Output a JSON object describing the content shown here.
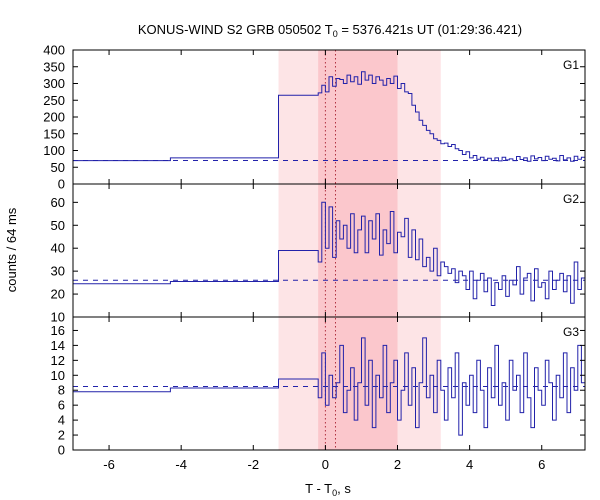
{
  "chart_data": {
    "type": "line",
    "title": "KONUS-WIND S2 GRB 050502 T",
    "title_sub": "0",
    "title_rest": " = 5376.421s UT (01:29:36.421)",
    "xlabel": "T - T",
    "xlabel_sub": "0",
    "xlabel_rest": ", s",
    "ylabel": "counts / 64 ms",
    "xlim": [
      -7,
      7.2
    ],
    "x_ticks": [
      -6,
      -4,
      -2,
      0,
      2,
      4,
      6
    ],
    "x_tick_labels": [
      "-6",
      "-4",
      "-2",
      "0",
      "2",
      "4",
      "6"
    ],
    "shaded_regions": [
      {
        "x0": -1.3,
        "x1": 3.2,
        "color": "#fde4e6"
      },
      {
        "x0": -0.2,
        "x1": 2.0,
        "color": "#fbc7cc"
      }
    ],
    "vertical_dotted_lines": [
      0.0,
      0.28
    ],
    "line_color": "#2222aa",
    "panels": [
      {
        "name": "G1",
        "ylim": [
          0,
          400
        ],
        "y_ticks": [
          0,
          50,
          100,
          150,
          200,
          250,
          300,
          350,
          400
        ],
        "y_tick_labels": [
          "0",
          "50",
          "100",
          "150",
          "200",
          "250",
          "300",
          "350",
          "400"
        ],
        "background": 70,
        "x": [
          -7.0,
          -4.3,
          -1.3,
          -0.2,
          -0.1,
          0.0,
          0.1,
          0.2,
          0.3,
          0.4,
          0.5,
          0.6,
          0.7,
          0.8,
          0.9,
          1.0,
          1.1,
          1.2,
          1.3,
          1.4,
          1.5,
          1.6,
          1.7,
          1.8,
          1.9,
          2.0,
          2.1,
          2.2,
          2.3,
          2.4,
          2.5,
          2.6,
          2.7,
          2.8,
          2.9,
          3.0,
          3.1,
          3.2,
          3.3,
          3.4,
          3.5,
          3.6,
          3.7,
          3.8,
          3.9,
          4.0,
          4.1,
          4.2,
          4.3,
          4.4,
          4.5,
          4.6,
          4.7,
          4.8,
          4.9,
          5.0,
          5.1,
          5.2,
          5.3,
          5.4,
          5.5,
          5.6,
          5.7,
          5.8,
          5.9,
          6.0,
          6.1,
          6.2,
          6.3,
          6.4,
          6.5,
          6.6,
          6.7,
          6.8,
          6.9,
          7.0,
          7.1
        ],
        "y": [
          70,
          78,
          265,
          272,
          295,
          275,
          320,
          292,
          315,
          312,
          300,
          325,
          305,
          320,
          298,
          335,
          310,
          325,
          300,
          320,
          310,
          295,
          315,
          300,
          322,
          285,
          300,
          275,
          270,
          235,
          215,
          190,
          175,
          160,
          150,
          135,
          130,
          120,
          122,
          112,
          118,
          105,
          100,
          88,
          96,
          78,
          85,
          74,
          80,
          72,
          77,
          70,
          78,
          69,
          80,
          72,
          75,
          70,
          82,
          73,
          78,
          68,
          84,
          75,
          79,
          70,
          83,
          74,
          77,
          69,
          85,
          72,
          78,
          68,
          83,
          74,
          80
        ]
      },
      {
        "name": "G2",
        "ylim": [
          10,
          68
        ],
        "y_ticks": [
          10,
          20,
          30,
          40,
          50,
          60
        ],
        "y_tick_labels": [
          "10",
          "20",
          "30",
          "40",
          "50",
          "60"
        ],
        "background": 26,
        "x": [
          -7.0,
          -4.3,
          -1.3,
          -0.2,
          -0.1,
          0.0,
          0.1,
          0.2,
          0.3,
          0.4,
          0.5,
          0.6,
          0.7,
          0.8,
          0.9,
          1.0,
          1.1,
          1.2,
          1.3,
          1.4,
          1.5,
          1.6,
          1.7,
          1.8,
          1.9,
          2.0,
          2.1,
          2.2,
          2.3,
          2.4,
          2.5,
          2.6,
          2.7,
          2.8,
          2.9,
          3.0,
          3.1,
          3.2,
          3.3,
          3.4,
          3.5,
          3.6,
          3.7,
          3.8,
          3.9,
          4.0,
          4.1,
          4.2,
          4.3,
          4.4,
          4.5,
          4.6,
          4.7,
          4.8,
          4.9,
          5.0,
          5.1,
          5.2,
          5.3,
          5.4,
          5.5,
          5.6,
          5.7,
          5.8,
          5.9,
          6.0,
          6.1,
          6.2,
          6.3,
          6.4,
          6.5,
          6.6,
          6.7,
          6.8,
          6.9,
          7.0,
          7.1
        ],
        "y": [
          24.5,
          25.5,
          39,
          34,
          60,
          40,
          58,
          36,
          52,
          44,
          50,
          40,
          55,
          38,
          48,
          54,
          38,
          52,
          44,
          55,
          37,
          48,
          42,
          56,
          38,
          47,
          45,
          53,
          36,
          48,
          35,
          44,
          32,
          36,
          30,
          40,
          28,
          34,
          32,
          29,
          31,
          25,
          30,
          28,
          22,
          30,
          18,
          26,
          29,
          21,
          27,
          15,
          25,
          22,
          28,
          19,
          26,
          24,
          32,
          20,
          27,
          29,
          17,
          31,
          23,
          25,
          18,
          30,
          22,
          26,
          29,
          21,
          28,
          16,
          34,
          22,
          27
        ]
      },
      {
        "name": "G3",
        "ylim": [
          0,
          17.8
        ],
        "y_ticks": [
          0,
          2,
          4,
          6,
          8,
          10,
          12,
          14,
          16
        ],
        "y_tick_labels": [
          "0",
          "2",
          "4",
          "6",
          "8",
          "10",
          "12",
          "14",
          "16"
        ],
        "background": 8.5,
        "x": [
          -7.0,
          -4.3,
          -1.3,
          -0.2,
          -0.1,
          0.0,
          0.1,
          0.2,
          0.3,
          0.4,
          0.5,
          0.6,
          0.7,
          0.8,
          0.9,
          1.0,
          1.1,
          1.2,
          1.3,
          1.4,
          1.5,
          1.6,
          1.7,
          1.8,
          1.9,
          2.0,
          2.1,
          2.2,
          2.3,
          2.4,
          2.5,
          2.6,
          2.7,
          2.8,
          2.9,
          3.0,
          3.1,
          3.2,
          3.3,
          3.4,
          3.5,
          3.6,
          3.7,
          3.8,
          3.9,
          4.0,
          4.1,
          4.2,
          4.3,
          4.4,
          4.5,
          4.6,
          4.7,
          4.8,
          4.9,
          5.0,
          5.1,
          5.2,
          5.3,
          5.4,
          5.5,
          5.6,
          5.7,
          5.8,
          5.9,
          6.0,
          6.1,
          6.2,
          6.3,
          6.4,
          6.5,
          6.6,
          6.7,
          6.8,
          6.9,
          7.0,
          7.1
        ],
        "y": [
          7.8,
          8.3,
          9.5,
          7,
          13,
          6,
          10,
          7,
          9,
          14,
          5,
          8,
          11,
          4,
          9,
          15,
          6,
          12,
          3,
          10,
          7,
          14,
          5,
          9,
          12,
          4,
          8,
          13,
          6,
          11,
          3,
          9,
          15,
          7,
          10,
          5,
          12,
          8,
          4,
          11,
          7,
          13,
          2,
          9,
          6,
          10,
          5,
          12,
          8,
          3,
          11,
          7,
          14,
          6,
          9,
          4,
          12,
          8,
          10,
          5,
          13,
          7,
          3,
          11,
          8,
          6,
          12,
          9,
          4,
          10,
          7,
          13,
          5,
          11,
          8,
          14,
          9
        ]
      }
    ]
  }
}
